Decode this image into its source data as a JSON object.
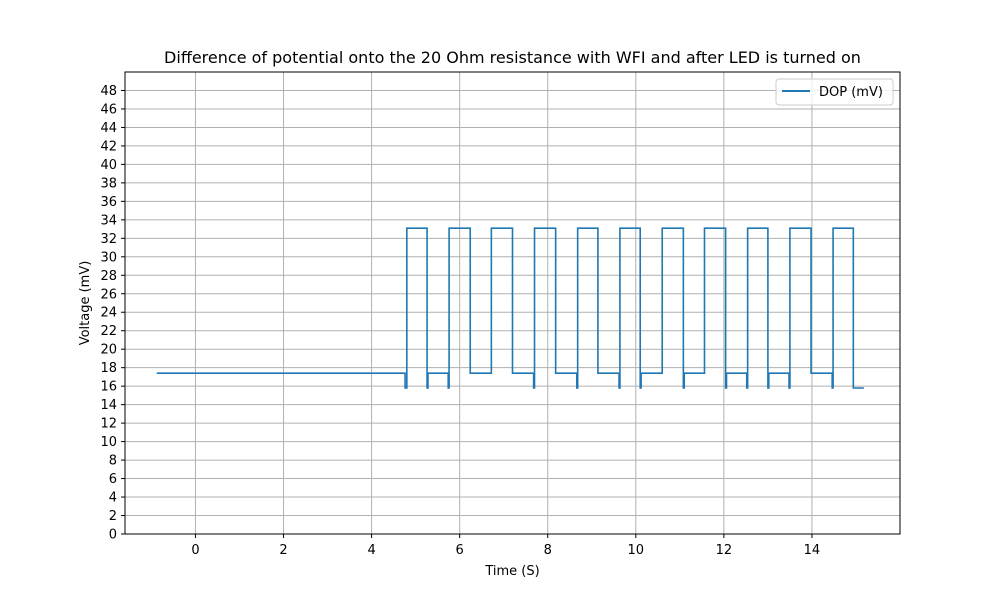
{
  "chart_data": {
    "type": "line",
    "title": "Difference of potential onto the 20 Ohm resistance with WFI and after LED is turned on",
    "xlabel": "Time (S)",
    "ylabel": "Voltage (mV)",
    "xlim": [
      -1.6,
      16.0
    ],
    "ylim": [
      0,
      50
    ],
    "xticks": [
      0,
      2,
      4,
      6,
      8,
      10,
      12,
      14
    ],
    "yticks": [
      0,
      2,
      4,
      6,
      8,
      10,
      12,
      14,
      16,
      18,
      20,
      22,
      24,
      26,
      28,
      30,
      32,
      34,
      36,
      38,
      40,
      42,
      44,
      46,
      48
    ],
    "grid": true,
    "legend_position": "top-right",
    "line_color": "#1f77b4",
    "series": [
      {
        "name": "DOP (mV)",
        "x": [
          -0.88,
          4.76,
          4.76,
          4.8,
          4.8,
          5.26,
          5.26,
          5.28,
          5.28,
          5.74,
          5.74,
          5.76,
          5.76,
          6.24,
          6.24,
          6.72,
          6.72,
          7.2,
          7.2,
          7.68,
          7.68,
          7.7,
          7.7,
          8.18,
          8.18,
          8.66,
          8.66,
          8.68,
          8.68,
          9.14,
          9.14,
          9.62,
          9.62,
          9.64,
          9.64,
          10.1,
          10.1,
          10.12,
          10.12,
          10.6,
          10.6,
          11.08,
          11.08,
          11.1,
          11.1,
          11.56,
          11.56,
          12.04,
          12.04,
          12.06,
          12.06,
          12.52,
          12.52,
          12.54,
          12.54,
          13.0,
          13.0,
          13.02,
          13.02,
          13.48,
          13.48,
          13.5,
          13.5,
          13.98,
          13.98,
          14.46,
          14.46,
          14.48,
          14.48,
          14.94,
          14.94,
          15.18
        ],
        "y": [
          17.4,
          17.4,
          15.8,
          15.8,
          33.1,
          33.1,
          15.8,
          15.8,
          17.4,
          17.4,
          15.8,
          15.8,
          33.1,
          33.1,
          17.4,
          17.4,
          33.1,
          33.1,
          17.4,
          17.4,
          15.8,
          15.8,
          33.1,
          33.1,
          17.4,
          17.4,
          15.8,
          15.8,
          33.1,
          33.1,
          17.4,
          17.4,
          15.8,
          15.8,
          33.1,
          33.1,
          15.8,
          15.8,
          17.4,
          17.4,
          33.1,
          33.1,
          15.8,
          15.8,
          17.4,
          17.4,
          33.1,
          33.1,
          15.8,
          15.8,
          17.4,
          17.4,
          15.8,
          15.8,
          33.1,
          33.1,
          15.8,
          15.8,
          17.4,
          17.4,
          15.8,
          15.8,
          33.1,
          33.1,
          17.4,
          17.4,
          15.8,
          15.8,
          33.1,
          33.1,
          15.8,
          15.8
        ]
      }
    ]
  }
}
